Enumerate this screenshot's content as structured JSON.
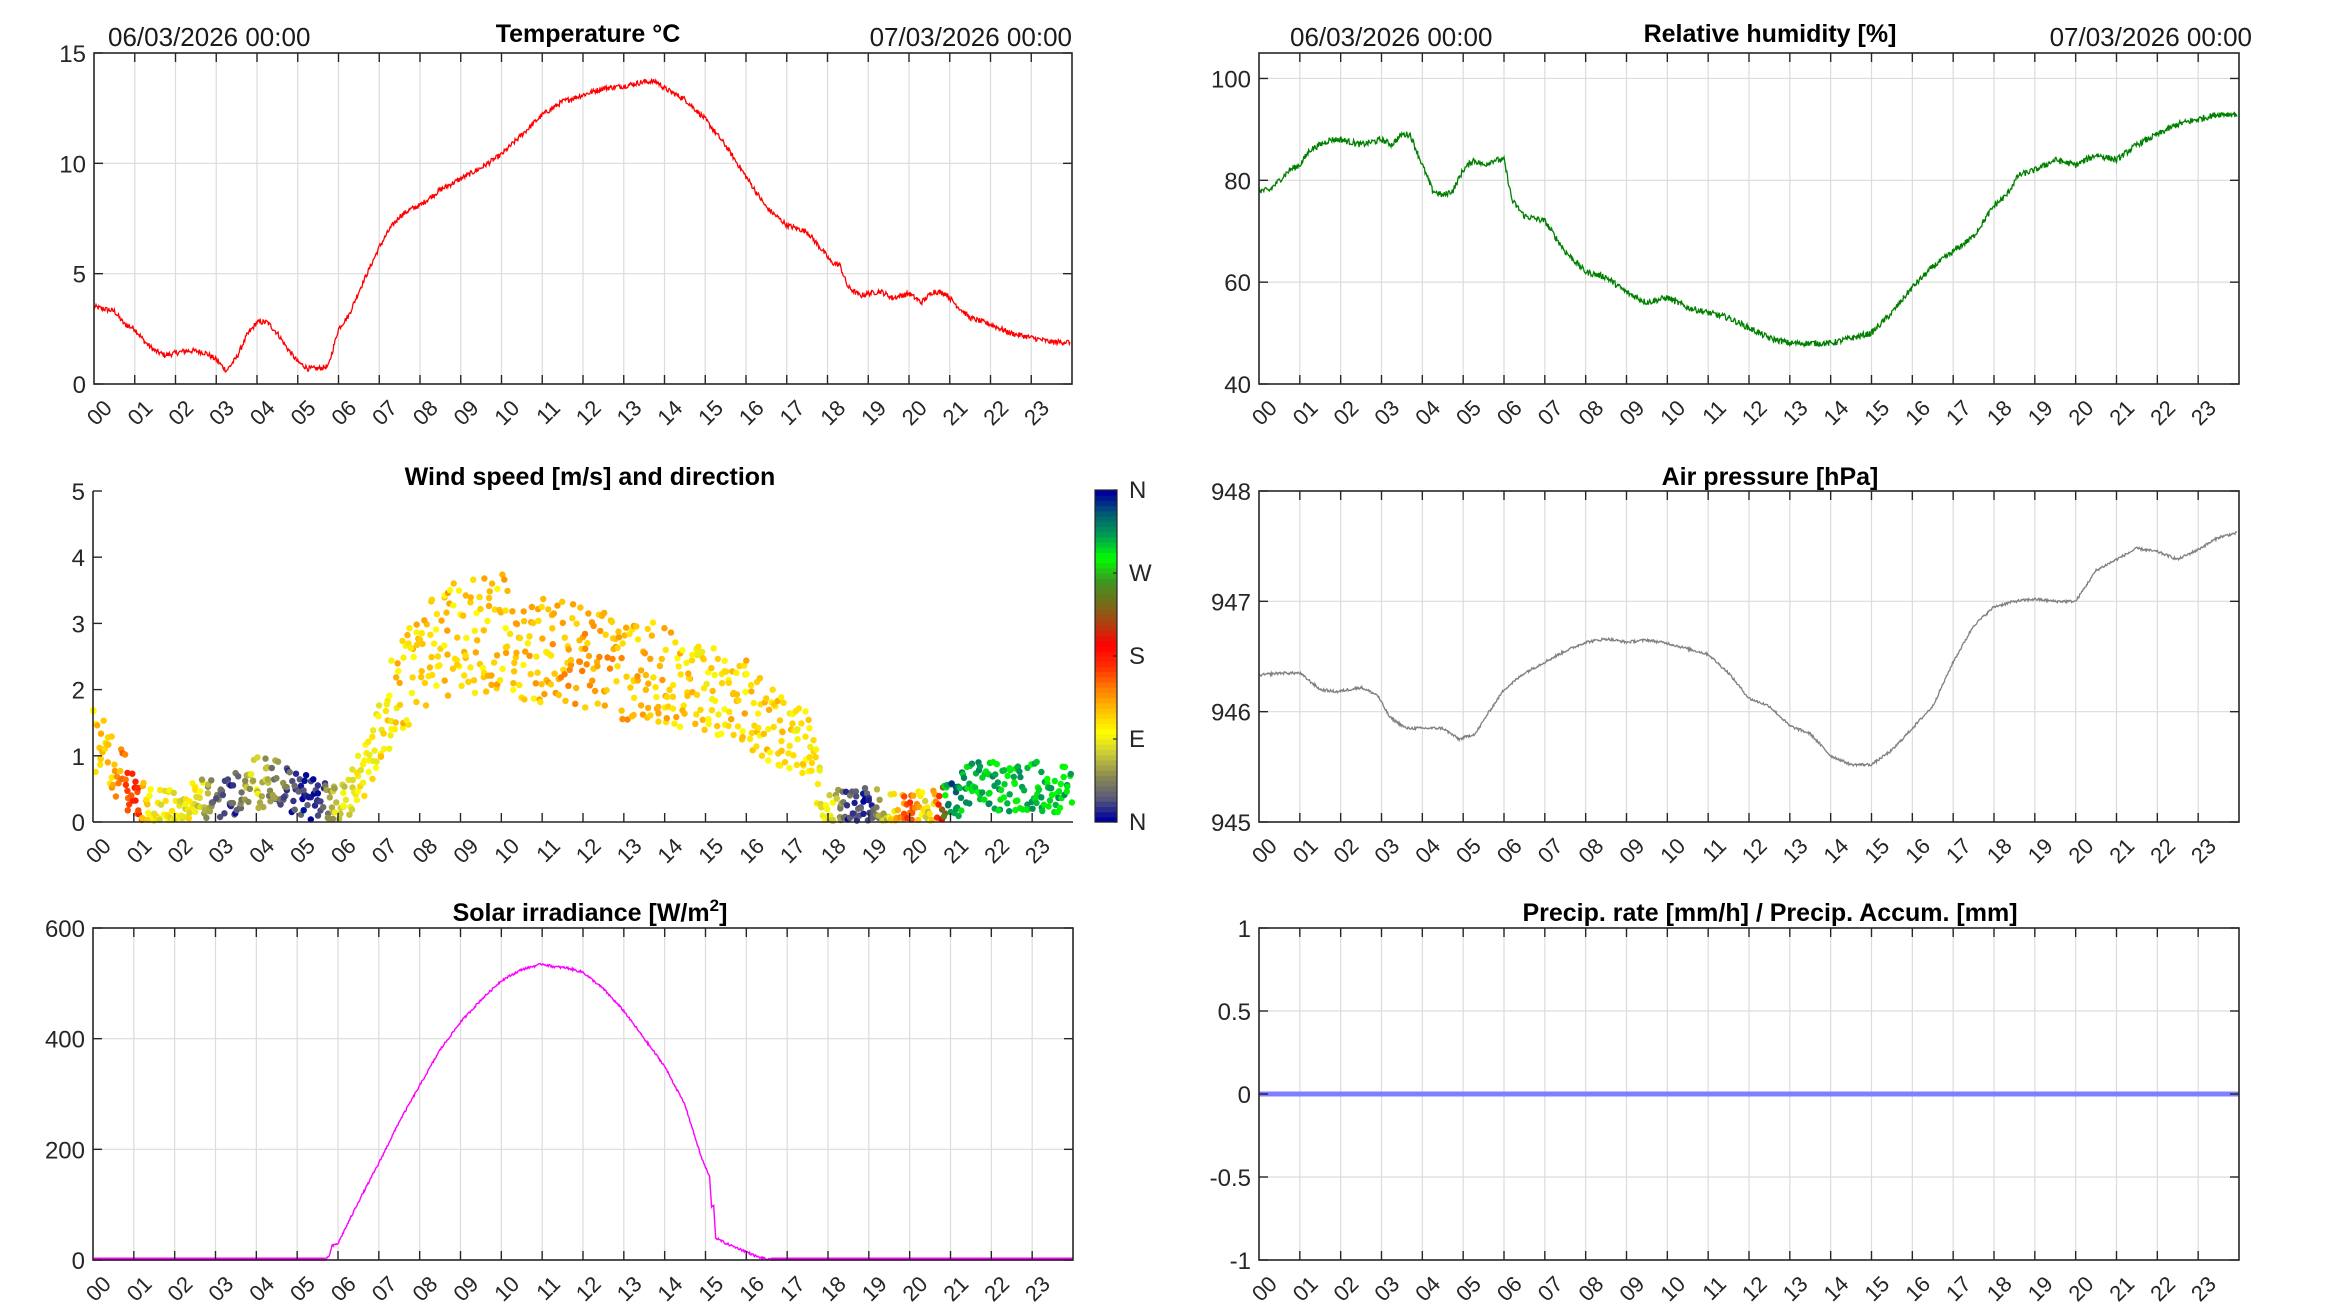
{
  "figure": {
    "start_label": "06/03/2026 00:00",
    "end_label": "07/03/2026 00:00"
  },
  "chart_data": [
    {
      "id": "temperature",
      "type": "line",
      "title": "Temperature °C",
      "color": "#ff0000",
      "xlabel": "",
      "ylabel": "",
      "xlim": [
        0,
        24
      ],
      "ylim": [
        0,
        15
      ],
      "yticks": [
        0,
        5,
        10,
        15
      ],
      "xtick_labels": [
        "00",
        "01",
        "02",
        "03",
        "04",
        "05",
        "06",
        "07",
        "08",
        "09",
        "10",
        "11",
        "12",
        "13",
        "14",
        "15",
        "16",
        "17",
        "18",
        "19",
        "20",
        "21",
        "22",
        "23"
      ],
      "grid": true,
      "x": [
        0,
        0.25,
        0.5,
        0.75,
        1,
        1.25,
        1.5,
        1.75,
        2,
        2.25,
        2.5,
        2.75,
        3,
        3.25,
        3.5,
        3.75,
        4,
        4.25,
        4.5,
        4.75,
        5,
        5.25,
        5.5,
        5.75,
        6,
        6.25,
        6.5,
        6.75,
        7,
        7.25,
        7.5,
        7.75,
        8,
        8.5,
        9,
        9.5,
        10,
        10.5,
        11,
        11.5,
        12,
        12.5,
        13,
        13.5,
        13.8,
        14,
        14.5,
        15,
        15.5,
        16,
        16.5,
        17,
        17.5,
        17.9,
        18.1,
        18.3,
        18.5,
        18.8,
        19,
        19.3,
        19.6,
        20,
        20.3,
        20.6,
        20.9,
        21.2,
        21.5,
        22,
        22.5,
        23,
        23.5,
        23.95
      ],
      "values": [
        3.5,
        3.4,
        3.3,
        2.7,
        2.5,
        1.9,
        1.5,
        1.3,
        1.4,
        1.5,
        1.5,
        1.4,
        1.1,
        0.6,
        1.2,
        2.2,
        2.8,
        2.8,
        2.3,
        1.6,
        1.0,
        0.7,
        0.7,
        0.8,
        2.5,
        3.1,
        4.2,
        5.2,
        6.2,
        7.0,
        7.6,
        7.9,
        8.1,
        8.8,
        9.3,
        9.8,
        10.4,
        11.3,
        12.2,
        12.8,
        13.1,
        13.4,
        13.5,
        13.7,
        13.7,
        13.4,
        12.9,
        12.0,
        10.8,
        9.4,
        8.0,
        7.2,
        6.9,
        6.0,
        5.5,
        5.4,
        4.4,
        4.0,
        4.1,
        4.2,
        3.9,
        4.1,
        3.7,
        4.2,
        4.1,
        3.5,
        3.0,
        2.7,
        2.3,
        2.1,
        1.9,
        1.9
      ]
    },
    {
      "id": "humidity",
      "type": "line",
      "title": "Relative humidity [%]",
      "color": "#008000",
      "xlim": [
        0,
        24
      ],
      "ylim": [
        40,
        105
      ],
      "yticks": [
        40,
        60,
        80,
        100
      ],
      "xtick_labels": [
        "00",
        "01",
        "02",
        "03",
        "04",
        "05",
        "06",
        "07",
        "08",
        "09",
        "10",
        "11",
        "12",
        "13",
        "14",
        "15",
        "16",
        "17",
        "18",
        "19",
        "20",
        "21",
        "22",
        "23"
      ],
      "grid": true,
      "x": [
        0,
        0.25,
        0.5,
        0.75,
        1,
        1.25,
        1.5,
        1.75,
        2,
        2.5,
        3,
        3.25,
        3.5,
        3.7,
        4,
        4.25,
        4.5,
        4.75,
        5,
        5.25,
        5.5,
        5.75,
        6,
        6.2,
        6.5,
        7,
        7.5,
        8,
        8.5,
        9,
        9.5,
        10,
        10.5,
        11,
        11.5,
        12,
        12.5,
        13,
        13.5,
        14,
        14.5,
        15,
        15.5,
        16,
        16.5,
        17,
        17.5,
        18,
        18.3,
        18.6,
        19,
        19.5,
        20,
        20.5,
        21,
        21.5,
        22,
        22.5,
        23,
        23.5,
        23.95
      ],
      "values": [
        78,
        78,
        80,
        82,
        83,
        86,
        87,
        88,
        88,
        87,
        88,
        87,
        89,
        89,
        83,
        78,
        77,
        78,
        82,
        84,
        83,
        84,
        84,
        76,
        73,
        72,
        66,
        62,
        61,
        58,
        56,
        57,
        55,
        54,
        53,
        51,
        49,
        48,
        48,
        48,
        49,
        50,
        54,
        59,
        63,
        66,
        69,
        75,
        77,
        81,
        82,
        84,
        83,
        85,
        84,
        87,
        89,
        91,
        92,
        93,
        93
      ]
    },
    {
      "id": "wind",
      "type": "scatter",
      "title": "Wind speed [m/s] and direction",
      "xlim": [
        0,
        24
      ],
      "ylim": [
        0,
        5
      ],
      "yticks": [
        0,
        1,
        2,
        3,
        4,
        5
      ],
      "xtick_labels": [
        "00",
        "01",
        "02",
        "03",
        "04",
        "05",
        "06",
        "07",
        "08",
        "09",
        "10",
        "11",
        "12",
        "13",
        "14",
        "15",
        "16",
        "17",
        "18",
        "19",
        "20",
        "21",
        "22",
        "23"
      ],
      "grid": false,
      "colorbar": {
        "labels": [
          "N",
          "E",
          "S",
          "W",
          "N"
        ],
        "range_deg": [
          0,
          360
        ],
        "colors": [
          "#00009c",
          "#5a5a7a",
          "#8a8a50",
          "#c8c83a",
          "#ffff00",
          "#ffc000",
          "#ff8000",
          "#ff3000",
          "#ff0000",
          "#b04010",
          "#70701a",
          "#3a9a20",
          "#00ff00",
          "#00a050",
          "#006070",
          "#00009c"
        ]
      },
      "speed_envelope_x": [
        0,
        0.5,
        1,
        1.5,
        2,
        2.5,
        3,
        3.5,
        4,
        4.5,
        5,
        5.5,
        6,
        6.5,
        7,
        7.5,
        8,
        8.5,
        9,
        9.5,
        10,
        10.5,
        11,
        11.5,
        12,
        12.5,
        13,
        13.5,
        14,
        14.5,
        15,
        15.5,
        16,
        16.5,
        17,
        17.5,
        17.8,
        18,
        18.5,
        19,
        19.5,
        20,
        20.5,
        21,
        21.5,
        22,
        22.5,
        23,
        23.5,
        23.9
      ],
      "speed_envelope_mean": [
        1.2,
        0.9,
        0.4,
        0.2,
        0.25,
        0.3,
        0.35,
        0.45,
        0.6,
        0.55,
        0.45,
        0.3,
        0.25,
        0.6,
        1.3,
        2.0,
        2.5,
        2.7,
        2.8,
        2.8,
        2.9,
        2.7,
        2.6,
        2.6,
        2.5,
        2.4,
        2.3,
        2.3,
        2.2,
        2.1,
        2.0,
        2.0,
        1.8,
        1.5,
        1.3,
        1.2,
        0.6,
        0.2,
        0.2,
        0.25,
        0.15,
        0.15,
        0.2,
        0.3,
        0.55,
        0.55,
        0.5,
        0.55,
        0.5,
        0.5
      ],
      "direction_envelope_deg": [
        110,
        120,
        175,
        95,
        90,
        95,
        30,
        20,
        80,
        40,
        15,
        5,
        80,
        95,
        100,
        110,
        112,
        115,
        118,
        112,
        115,
        118,
        120,
        125,
        130,
        130,
        125,
        120,
        115,
        110,
        105,
        110,
        115,
        110,
        108,
        100,
        95,
        90,
        20,
        10,
        85,
        165,
        75,
        330,
        300,
        305,
        300,
        300,
        305,
        300
      ]
    },
    {
      "id": "pressure",
      "type": "line",
      "title": "Air pressure [hPa]",
      "color": "#808080",
      "xlim": [
        0,
        24
      ],
      "ylim": [
        945,
        948
      ],
      "yticks": [
        945,
        946,
        947,
        948
      ],
      "xtick_labels": [
        "00",
        "01",
        "02",
        "03",
        "04",
        "05",
        "06",
        "07",
        "08",
        "09",
        "10",
        "11",
        "12",
        "13",
        "14",
        "15",
        "16",
        "17",
        "18",
        "19",
        "20",
        "21",
        "22",
        "23"
      ],
      "grid": true,
      "x": [
        0,
        0.5,
        1,
        1.5,
        1.9,
        2.5,
        2.9,
        3.2,
        3.6,
        4,
        4.5,
        4.9,
        5.3,
        5.6,
        6,
        6.5,
        7,
        7.5,
        8,
        8.5,
        9,
        9.5,
        10,
        10.5,
        11,
        11.5,
        12,
        12.5,
        13,
        13.5,
        14,
        14.5,
        15,
        15.5,
        16,
        16.5,
        17,
        17.5,
        18,
        18.5,
        19,
        19.5,
        20,
        20.5,
        21,
        21.5,
        22,
        22.5,
        23,
        23.5,
        23.95
      ],
      "values": [
        946.33,
        946.35,
        946.35,
        946.2,
        946.18,
        946.22,
        946.15,
        945.95,
        945.85,
        945.85,
        945.85,
        945.75,
        945.8,
        945.98,
        946.2,
        946.35,
        946.45,
        946.55,
        946.63,
        946.66,
        946.63,
        946.65,
        946.62,
        946.57,
        946.52,
        946.35,
        946.12,
        946.05,
        945.87,
        945.8,
        945.6,
        945.52,
        945.52,
        945.65,
        945.85,
        946.05,
        946.45,
        946.78,
        946.95,
        947.0,
        947.02,
        947.0,
        947.0,
        947.28,
        947.38,
        947.48,
        947.45,
        947.38,
        947.47,
        947.58,
        947.62
      ]
    },
    {
      "id": "solar",
      "type": "line",
      "title_main": "Solar irradiance [W/m",
      "title_sup": "2",
      "title_end": "]",
      "color": "#ff00ff",
      "xlim": [
        0,
        24
      ],
      "ylim": [
        0,
        600
      ],
      "yticks": [
        0,
        200,
        400,
        600
      ],
      "xtick_labels": [
        "00",
        "01",
        "02",
        "03",
        "04",
        "05",
        "06",
        "07",
        "08",
        "09",
        "10",
        "11",
        "12",
        "13",
        "14",
        "15",
        "16",
        "17",
        "18",
        "19",
        "20",
        "21",
        "22",
        "23"
      ],
      "grid": true,
      "x": [
        0,
        5.7,
        5.8,
        5.85,
        6.0,
        6.5,
        7,
        7.5,
        8,
        8.5,
        9,
        9.5,
        10,
        10.5,
        11,
        11.3,
        11.6,
        12,
        12.5,
        13,
        13.5,
        14,
        14.5,
        14.9,
        15.1,
        15.15,
        15.2,
        15.25,
        15.5,
        15.9,
        16.3,
        16.6,
        16.8,
        24
      ],
      "values": [
        0,
        0,
        10,
        25,
        30,
        105,
        175,
        250,
        315,
        380,
        430,
        470,
        505,
        525,
        535,
        530,
        528,
        520,
        490,
        450,
        400,
        350,
        280,
        185,
        150,
        95,
        100,
        40,
        30,
        18,
        5,
        0,
        0,
        0
      ]
    },
    {
      "id": "precip",
      "type": "line",
      "title": "Precip. rate [mm/h] / Precip. Accum. [mm]",
      "color": "#8080ff",
      "xlim": [
        0,
        24
      ],
      "ylim": [
        -1,
        1
      ],
      "yticks": [
        -1,
        -0.5,
        0,
        0.5,
        1
      ],
      "ytick_labels": [
        "-1",
        "-0.5",
        "0",
        "0.5",
        "1"
      ],
      "xtick_labels": [
        "00",
        "01",
        "02",
        "03",
        "04",
        "05",
        "06",
        "07",
        "08",
        "09",
        "10",
        "11",
        "12",
        "13",
        "14",
        "15",
        "16",
        "17",
        "18",
        "19",
        "20",
        "21",
        "22",
        "23"
      ],
      "grid": true,
      "x": [
        0,
        24
      ],
      "values": [
        0,
        0
      ]
    }
  ]
}
